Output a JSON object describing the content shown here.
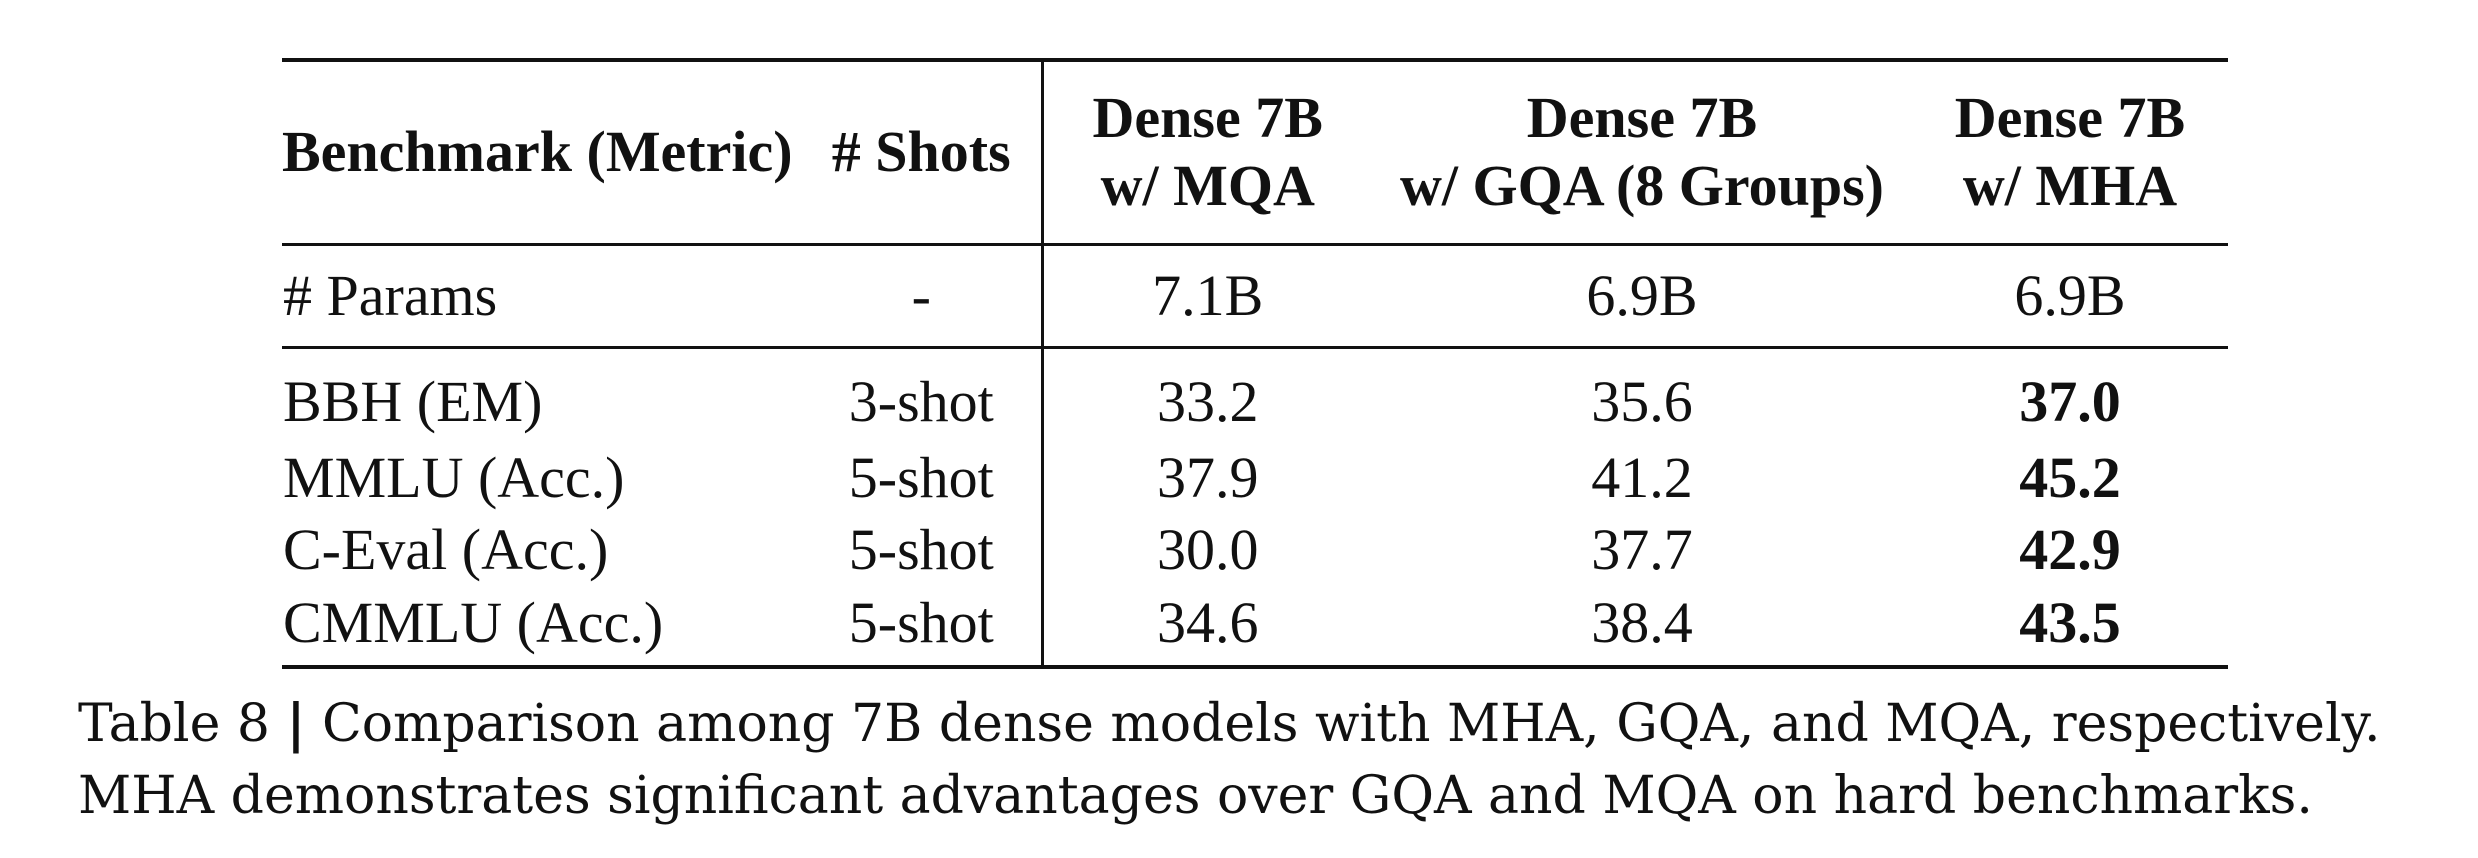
{
  "table": {
    "headers": {
      "benchmark": "Benchmark (Metric)",
      "shots": "# Shots",
      "mqa_line1": "Dense 7B",
      "mqa_line2": "w/ MQA",
      "gqa_line1": "Dense 7B",
      "gqa_line2": "w/ GQA (8 Groups)",
      "mha_line1": "Dense 7B",
      "mha_line2": "w/ MHA"
    },
    "params_row": {
      "label": "# Params",
      "shots": "-",
      "mqa": "7.1B",
      "gqa": "6.9B",
      "mha": "6.9B"
    },
    "rows": [
      {
        "benchmark": "BBH (EM)",
        "shots": "3-shot",
        "mqa": "33.2",
        "gqa": "35.6",
        "mha": "37.0"
      },
      {
        "benchmark": "MMLU (Acc.)",
        "shots": "5-shot",
        "mqa": "37.9",
        "gqa": "41.2",
        "mha": "45.2"
      },
      {
        "benchmark": "C-Eval (Acc.)",
        "shots": "5-shot",
        "mqa": "30.0",
        "gqa": "37.7",
        "mha": "42.9"
      },
      {
        "benchmark": "CMMLU (Acc.)",
        "shots": "5-shot",
        "mqa": "34.6",
        "gqa": "38.4",
        "mha": "43.5"
      }
    ]
  },
  "caption": {
    "label": "Table 8",
    "separator": "|",
    "text": "Comparison among 7B dense models with MHA, GQA, and MQA, respectively. MHA demonstrates significant advantages over GQA and MQA on hard benchmarks."
  }
}
